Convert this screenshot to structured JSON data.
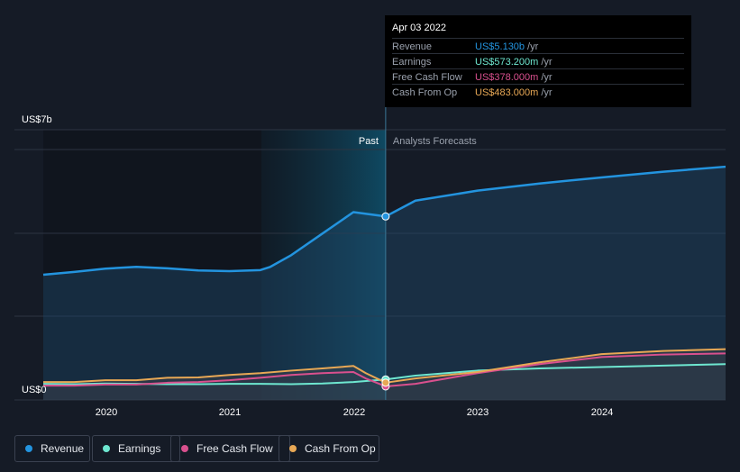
{
  "chart_data": {
    "type": "line",
    "ylabel_top": "US$7b",
    "ylabel_bottom": "US$0",
    "ylim": [
      0,
      7
    ],
    "x_ticks": [
      "2020",
      "2021",
      "2022",
      "2023",
      "2024"
    ],
    "past_label": "Past",
    "forecast_label": "Analysts Forecasts",
    "highlight_date": 2022.26,
    "series": [
      {
        "name": "Revenue",
        "color": "#2394df",
        "x": [
          2019.5,
          2019.75,
          2020.0,
          2020.25,
          2020.5,
          2020.75,
          2021.0,
          2021.25,
          2021.33,
          2021.5,
          2021.75,
          2022.0,
          2022.26,
          2022.5,
          2023.0,
          2023.5,
          2024.0,
          2024.5,
          2025.0
        ],
        "y": [
          3.5,
          3.58,
          3.67,
          3.72,
          3.68,
          3.62,
          3.6,
          3.63,
          3.72,
          4.05,
          4.65,
          5.25,
          5.13,
          5.57,
          5.85,
          6.05,
          6.22,
          6.38,
          6.52
        ]
      },
      {
        "name": "Earnings",
        "color": "#6ee7d0",
        "x": [
          2019.5,
          2019.75,
          2020.0,
          2020.25,
          2020.5,
          2020.75,
          2021.0,
          2021.25,
          2021.5,
          2021.75,
          2022.0,
          2022.26,
          2022.5,
          2023.0,
          2023.5,
          2024.0,
          2024.5,
          2025.0
        ],
        "y": [
          0.45,
          0.44,
          0.46,
          0.45,
          0.44,
          0.44,
          0.45,
          0.45,
          0.44,
          0.46,
          0.5,
          0.573,
          0.68,
          0.82,
          0.88,
          0.92,
          0.96,
          1.0
        ]
      },
      {
        "name": "Free Cash Flow",
        "color": "#d9508e",
        "x": [
          2019.5,
          2019.75,
          2020.0,
          2020.25,
          2020.5,
          2020.75,
          2021.0,
          2021.25,
          2021.5,
          2021.75,
          2022.0,
          2022.1,
          2022.26,
          2022.5,
          2023.0,
          2023.5,
          2024.0,
          2024.5,
          2025.0
        ],
        "y": [
          0.4,
          0.4,
          0.43,
          0.43,
          0.48,
          0.5,
          0.55,
          0.62,
          0.7,
          0.75,
          0.78,
          0.6,
          0.378,
          0.45,
          0.75,
          1.0,
          1.2,
          1.27,
          1.3
        ]
      },
      {
        "name": "Cash From Op",
        "color": "#e8a855",
        "x": [
          2019.5,
          2019.75,
          2020.0,
          2020.25,
          2020.5,
          2020.75,
          2021.0,
          2021.25,
          2021.5,
          2021.75,
          2022.0,
          2022.1,
          2022.26,
          2022.5,
          2023.0,
          2023.5,
          2024.0,
          2024.5,
          2025.0
        ],
        "y": [
          0.5,
          0.5,
          0.55,
          0.55,
          0.62,
          0.63,
          0.7,
          0.75,
          0.82,
          0.88,
          0.95,
          0.75,
          0.483,
          0.6,
          0.78,
          1.05,
          1.28,
          1.37,
          1.42
        ]
      }
    ]
  },
  "tooltip": {
    "date": "Apr 03 2022",
    "unit": "/yr",
    "rows": [
      {
        "label": "Revenue",
        "value": "US$5.130b",
        "color": "#2394df"
      },
      {
        "label": "Earnings",
        "value": "US$573.200m",
        "color": "#6ee7d0"
      },
      {
        "label": "Free Cash Flow",
        "value": "US$378.000m",
        "color": "#d9508e"
      },
      {
        "label": "Cash From Op",
        "value": "US$483.000m",
        "color": "#e8a855"
      }
    ]
  },
  "legend": [
    {
      "label": "Revenue",
      "color": "#2394df"
    },
    {
      "label": "Earnings",
      "color": "#6ee7d0"
    },
    {
      "label": "Free Cash Flow",
      "color": "#d9508e"
    },
    {
      "label": "Cash From Op",
      "color": "#e8a855"
    }
  ]
}
